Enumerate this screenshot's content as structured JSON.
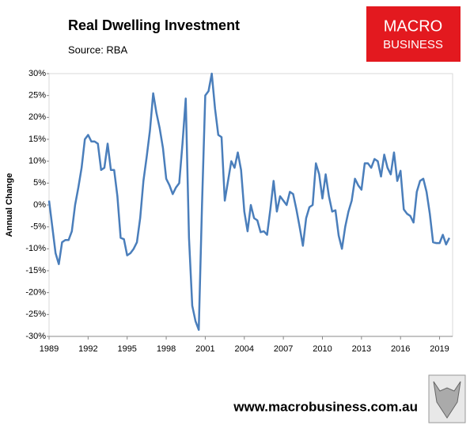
{
  "chart_data": {
    "type": "line",
    "title": "Real Dwelling Investment",
    "subtitle": "Source: RBA",
    "ylabel": "Annual Change",
    "x": [
      1989,
      1989.25,
      1989.5,
      1989.75,
      1990,
      1990.25,
      1990.5,
      1990.75,
      1991,
      1991.25,
      1991.5,
      1991.75,
      1992,
      1992.25,
      1992.5,
      1992.75,
      1993,
      1993.25,
      1993.5,
      1993.75,
      1994,
      1994.25,
      1994.5,
      1994.75,
      1995,
      1995.25,
      1995.5,
      1995.75,
      1996,
      1996.25,
      1996.5,
      1996.75,
      1997,
      1997.25,
      1997.5,
      1997.75,
      1998,
      1998.25,
      1998.5,
      1998.75,
      1999,
      1999.25,
      1999.5,
      1999.75,
      2000,
      2000.25,
      2000.5,
      2000.75,
      2001,
      2001.25,
      2001.5,
      2001.75,
      2002,
      2002.25,
      2002.5,
      2002.75,
      2003,
      2003.25,
      2003.5,
      2003.75,
      2004,
      2004.25,
      2004.5,
      2004.75,
      2005,
      2005.25,
      2005.5,
      2005.75,
      2006,
      2006.25,
      2006.5,
      2006.75,
      2007,
      2007.25,
      2007.5,
      2007.75,
      2008,
      2008.25,
      2008.5,
      2008.75,
      2009,
      2009.25,
      2009.5,
      2009.75,
      2010,
      2010.25,
      2010.5,
      2010.75,
      2011,
      2011.25,
      2011.5,
      2011.75,
      2012,
      2012.25,
      2012.5,
      2012.75,
      2013,
      2013.25,
      2013.5,
      2013.75,
      2014,
      2014.25,
      2014.5,
      2014.75,
      2015,
      2015.25,
      2015.5,
      2015.75,
      2016,
      2016.25,
      2016.5,
      2016.75,
      2017,
      2017.25,
      2017.5,
      2017.75,
      2018,
      2018.25,
      2018.5,
      2018.75,
      2019,
      2019.25,
      2019.5,
      2019.75
    ],
    "series": [
      {
        "name": "Real Dwelling Investment",
        "color": "#4a7ebb",
        "values": [
          1,
          -5,
          -11,
          -13.5,
          -8.5,
          -8,
          -8,
          -6,
          0,
          4,
          8.5,
          15,
          16,
          14.5,
          14.5,
          14,
          8,
          8.5,
          14,
          8,
          8,
          2,
          -7.5,
          -7.8,
          -11.5,
          -11,
          -10,
          -8.5,
          -3,
          5.5,
          11,
          17,
          25.5,
          21,
          17.5,
          13,
          6,
          4.5,
          2.5,
          4,
          5,
          14,
          24.3,
          -7.5,
          -23,
          -26.5,
          -28.5,
          0,
          25,
          26,
          30,
          22,
          16,
          15.5,
          1,
          5.5,
          10,
          8.5,
          12,
          8,
          -1.5,
          -6,
          0,
          -3,
          -3.5,
          -6.2,
          -6,
          -6.8,
          -1,
          5.5,
          -1.5,
          2,
          1,
          0,
          3,
          2.5,
          -1,
          -5,
          -9.3,
          -3,
          -0.5,
          0,
          9.5,
          7,
          1.5,
          7,
          2,
          -1.5,
          -1.2,
          -7,
          -10,
          -5,
          -1.5,
          1,
          6,
          4.5,
          3.5,
          9.5,
          9.5,
          8.5,
          10.5,
          10,
          6.5,
          11.5,
          8.5,
          7,
          12,
          5.5,
          7.8,
          -1,
          -2,
          -2.5,
          -4,
          3,
          5.5,
          6,
          3,
          -2,
          -8.5,
          -8.7,
          -8.7,
          -6.8,
          -9,
          -7.5
        ]
      }
    ],
    "xlim": [
      1989,
      2020
    ],
    "xticks": [
      1989,
      1992,
      1995,
      1998,
      2001,
      2004,
      2007,
      2010,
      2013,
      2016,
      2019
    ],
    "ylim": [
      -30,
      30
    ],
    "yticks": [
      {
        "value": 30,
        "label": "30%"
      },
      {
        "value": 25,
        "label": "25%"
      },
      {
        "value": 20,
        "label": "20%"
      },
      {
        "value": 15,
        "label": "15%"
      },
      {
        "value": 10,
        "label": "10%"
      },
      {
        "value": 5,
        "label": "5%"
      },
      {
        "value": 0,
        "label": "0%"
      },
      {
        "value": -5,
        "label": "-5%"
      },
      {
        "value": -10,
        "label": "-10%"
      },
      {
        "value": -15,
        "label": "-15%"
      },
      {
        "value": -20,
        "label": "-20%"
      },
      {
        "value": -25,
        "label": "-25%"
      },
      {
        "value": -30,
        "label": "-30%"
      }
    ],
    "grid": false
  },
  "branding": {
    "logo_line1": "MACRO",
    "logo_line2": "BUSINESS",
    "website": "www.macrobusiness.com.au"
  }
}
